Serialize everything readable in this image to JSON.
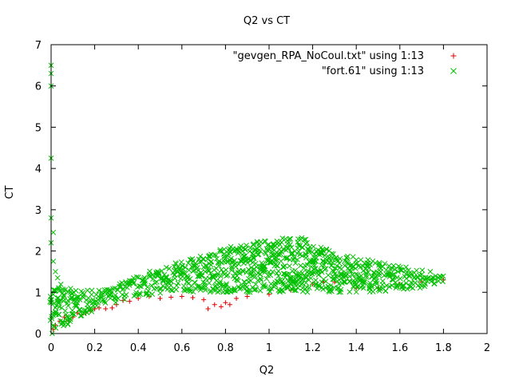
{
  "chart_data": {
    "type": "scatter",
    "title": "Q2 vs CT",
    "xlabel": "Q2",
    "ylabel": "CT",
    "xlim": [
      0,
      2
    ],
    "ylim": [
      0,
      7
    ],
    "xticks": [
      0,
      0.2,
      0.4,
      0.6,
      0.8,
      1,
      1.2,
      1.4,
      1.6,
      1.8,
      2
    ],
    "xtick_labels": [
      "0",
      "0.2",
      "0.4",
      "0.6",
      "0.8",
      "1",
      "1.2",
      "1.4",
      "1.6",
      "1.8",
      "2"
    ],
    "yticks": [
      0,
      1,
      2,
      3,
      4,
      5,
      6,
      7
    ],
    "ytick_labels": [
      "0",
      "1",
      "2",
      "3",
      "4",
      "5",
      "6",
      "7"
    ],
    "grid": false,
    "legend_position": "top-right",
    "series": [
      {
        "name": "\"gevgen_RPA_NoCoul.txt\" using 1:13",
        "marker": "plus",
        "color": "#e00000",
        "points": [
          [
            0.01,
            0.1
          ],
          [
            0.02,
            0.2
          ],
          [
            0.04,
            0.3
          ],
          [
            0.06,
            0.4
          ],
          [
            0.08,
            0.3
          ],
          [
            0.1,
            0.4
          ],
          [
            0.12,
            0.5
          ],
          [
            0.14,
            0.45
          ],
          [
            0.16,
            0.5
          ],
          [
            0.18,
            0.55
          ],
          [
            0.2,
            0.6
          ],
          [
            0.22,
            0.62
          ],
          [
            0.25,
            0.6
          ],
          [
            0.28,
            0.62
          ],
          [
            0.3,
            0.7
          ],
          [
            0.33,
            0.8
          ],
          [
            0.36,
            0.78
          ],
          [
            0.4,
            0.85
          ],
          [
            0.45,
            0.9
          ],
          [
            0.5,
            0.85
          ],
          [
            0.55,
            0.88
          ],
          [
            0.6,
            0.9
          ],
          [
            0.65,
            0.87
          ],
          [
            0.7,
            0.82
          ],
          [
            0.72,
            0.6
          ],
          [
            0.75,
            0.7
          ],
          [
            0.78,
            0.65
          ],
          [
            0.8,
            0.75
          ],
          [
            0.82,
            0.7
          ],
          [
            0.85,
            0.85
          ],
          [
            0.9,
            0.9
          ],
          [
            1.0,
            0.95
          ],
          [
            1.1,
            1.05
          ],
          [
            1.2,
            1.2
          ],
          [
            1.25,
            1.25
          ],
          [
            1.3,
            1.25
          ],
          [
            1.4,
            1.1
          ],
          [
            1.5,
            1.1
          ],
          [
            1.6,
            1.2
          ],
          [
            1.7,
            1.25
          ],
          [
            1.8,
            1.3
          ]
        ]
      },
      {
        "name": "\"fort.61\" using 1:13",
        "marker": "cross",
        "color": "#00c000",
        "outliers": [
          [
            0.0,
            6.5
          ],
          [
            0.0,
            6.3
          ],
          [
            0.0,
            6.0
          ],
          [
            0.0,
            4.25
          ],
          [
            0.0,
            2.8
          ],
          [
            0.01,
            2.45
          ],
          [
            0.0,
            2.2
          ],
          [
            0.01,
            1.75
          ],
          [
            0.02,
            1.5
          ],
          [
            0.03,
            1.35
          ]
        ],
        "band_upper": [
          [
            0.0,
            1.1
          ],
          [
            0.05,
            1.2
          ],
          [
            0.1,
            1.05
          ],
          [
            0.2,
            1.05
          ],
          [
            0.28,
            1.1
          ],
          [
            0.3,
            1.2
          ],
          [
            0.4,
            1.4
          ],
          [
            0.5,
            1.6
          ],
          [
            0.6,
            1.75
          ],
          [
            0.7,
            1.9
          ],
          [
            0.8,
            2.1
          ],
          [
            0.9,
            2.2
          ],
          [
            1.0,
            2.28
          ],
          [
            1.1,
            2.33
          ],
          [
            1.15,
            2.35
          ],
          [
            1.2,
            2.2
          ],
          [
            1.3,
            1.95
          ],
          [
            1.4,
            1.85
          ],
          [
            1.5,
            1.75
          ],
          [
            1.6,
            1.65
          ],
          [
            1.7,
            1.55
          ],
          [
            1.8,
            1.45
          ]
        ],
        "band_lower": [
          [
            0.0,
            0.0
          ],
          [
            0.1,
            0.3
          ],
          [
            0.2,
            0.55
          ],
          [
            0.3,
            0.75
          ],
          [
            0.4,
            0.9
          ],
          [
            0.5,
            0.95
          ],
          [
            0.6,
            1.0
          ],
          [
            1.0,
            1.0
          ],
          [
            1.5,
            1.0
          ],
          [
            1.7,
            1.1
          ],
          [
            1.8,
            1.25
          ]
        ]
      }
    ]
  }
}
